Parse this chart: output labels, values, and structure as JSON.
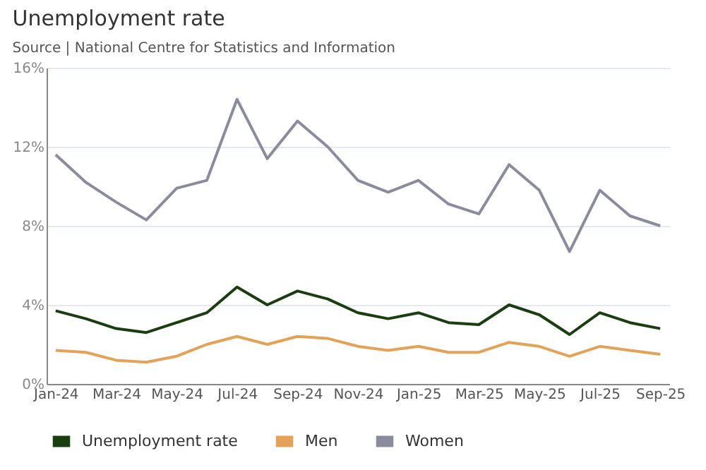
{
  "chart_data": {
    "type": "line",
    "title": "Unemployment rate",
    "subtitle": "Source | National Centre for Statistics and Information",
    "categories": [
      "Jan-24",
      null,
      "Mar-24",
      null,
      "May-24",
      null,
      "Jul-24",
      null,
      "Sep-24",
      null,
      "Nov-24",
      null,
      "Jan-25",
      null,
      "Mar-25",
      null,
      "May-25",
      null,
      "Jul-25",
      null,
      "Sep-25"
    ],
    "series": [
      {
        "name": "Unemployment rate",
        "color": "#1b3d12",
        "values": [
          3.7,
          3.3,
          2.8,
          2.6,
          3.1,
          3.6,
          4.9,
          4.0,
          4.7,
          4.3,
          3.6,
          3.3,
          3.6,
          3.1,
          3.0,
          4.0,
          3.5,
          2.5,
          3.6,
          3.1,
          2.8
        ]
      },
      {
        "name": "Men",
        "color": "#e3a257",
        "values": [
          1.7,
          1.6,
          1.2,
          1.1,
          1.4,
          2.0,
          2.4,
          2.0,
          2.4,
          2.3,
          1.9,
          1.7,
          1.9,
          1.6,
          1.6,
          2.1,
          1.9,
          1.4,
          1.9,
          1.7,
          1.5
        ]
      },
      {
        "name": "Women",
        "color": "#8a8c9e",
        "values": [
          11.6,
          10.2,
          9.2,
          8.3,
          9.9,
          10.3,
          14.4,
          11.4,
          13.3,
          12.0,
          10.3,
          9.7,
          10.3,
          9.1,
          8.6,
          11.1,
          9.8,
          6.7,
          9.8,
          8.5,
          8.0
        ]
      }
    ],
    "ylim": [
      0,
      16
    ],
    "yticks": [
      {
        "value": 0,
        "label": "0%"
      },
      {
        "value": 4,
        "label": "4%"
      },
      {
        "value": 8,
        "label": "8%"
      },
      {
        "value": 12,
        "label": "12%"
      },
      {
        "value": 16,
        "label": "16%"
      }
    ],
    "grid": "y",
    "legend": "bottom",
    "marker": "none",
    "line_style": "solid"
  }
}
